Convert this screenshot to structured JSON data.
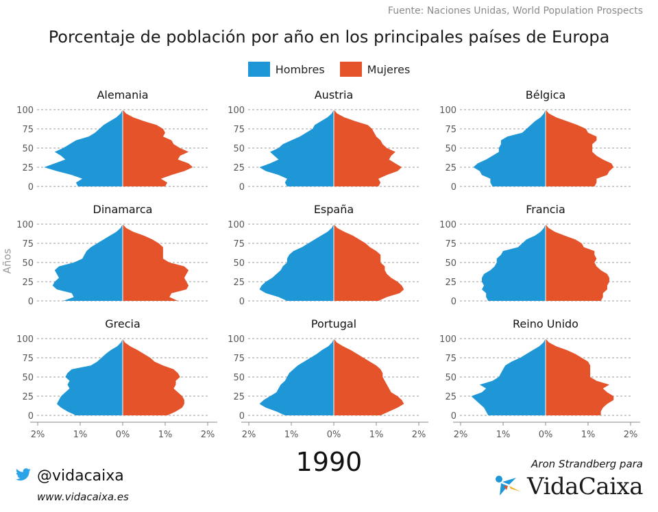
{
  "source": "Fuente: Naciones Unidas, World Population Prospects",
  "title": "Porcentaje de población por año en los principales países de Europa",
  "legend": {
    "men": "Hombres",
    "women": "Mujeres"
  },
  "colors": {
    "men": "#1f96d6",
    "women": "#e4532a",
    "grid": "#9a9a9a"
  },
  "ylabel": "Años",
  "year": "1990",
  "footer": {
    "twitter_handle": "@vidacaixa",
    "website": "www.vidacaixa.es",
    "credit": "Aron Strandberg para",
    "brand": "VidaCaixa",
    "twitter_icon": "twitter-bird-icon",
    "brand_icon": "star-logo-icon"
  },
  "chart_data": [
    {
      "type": "population-pyramid",
      "title": "Alemania",
      "ages": [
        0,
        5,
        10,
        15,
        20,
        25,
        30,
        35,
        40,
        45,
        50,
        55,
        60,
        65,
        70,
        75,
        80,
        85,
        90,
        95,
        100
      ],
      "men": [
        1.05,
        1.1,
        0.95,
        1.2,
        1.55,
        1.85,
        1.6,
        1.35,
        1.45,
        1.6,
        1.4,
        1.25,
        1.1,
        0.8,
        0.65,
        0.55,
        0.45,
        0.3,
        0.15,
        0.05,
        0.0
      ],
      "women": [
        1.0,
        1.05,
        0.9,
        1.15,
        1.45,
        1.65,
        1.55,
        1.3,
        1.35,
        1.55,
        1.35,
        1.2,
        1.15,
        0.95,
        1.0,
        0.95,
        0.8,
        0.5,
        0.25,
        0.08,
        0.0
      ]
    },
    {
      "type": "population-pyramid",
      "title": "Austria",
      "ages": [
        0,
        5,
        10,
        15,
        20,
        25,
        30,
        35,
        40,
        45,
        50,
        55,
        60,
        65,
        70,
        75,
        80,
        85,
        90,
        95,
        100
      ],
      "men": [
        1.1,
        1.15,
        1.1,
        1.3,
        1.6,
        1.75,
        1.5,
        1.3,
        1.4,
        1.5,
        1.3,
        1.2,
        1.0,
        0.8,
        0.65,
        0.5,
        0.45,
        0.3,
        0.15,
        0.05,
        0.0
      ],
      "women": [
        1.05,
        1.1,
        1.05,
        1.25,
        1.5,
        1.6,
        1.45,
        1.3,
        1.35,
        1.45,
        1.25,
        1.15,
        1.1,
        1.0,
        0.95,
        0.9,
        0.8,
        0.5,
        0.25,
        0.08,
        0.0
      ]
    },
    {
      "type": "population-pyramid",
      "title": "Bélgica",
      "ages": [
        0,
        5,
        10,
        15,
        20,
        25,
        30,
        35,
        40,
        45,
        50,
        55,
        60,
        65,
        70,
        75,
        80,
        85,
        90,
        95,
        100
      ],
      "men": [
        1.25,
        1.3,
        1.3,
        1.5,
        1.55,
        1.7,
        1.6,
        1.4,
        1.25,
        1.1,
        1.1,
        1.05,
        1.05,
        0.9,
        0.55,
        0.45,
        0.35,
        0.25,
        0.12,
        0.04,
        0.0
      ],
      "women": [
        1.15,
        1.2,
        1.2,
        1.45,
        1.5,
        1.6,
        1.55,
        1.35,
        1.2,
        1.1,
        1.1,
        1.1,
        1.2,
        1.2,
        1.0,
        0.95,
        0.75,
        0.5,
        0.25,
        0.08,
        0.0
      ]
    },
    {
      "type": "population-pyramid",
      "title": "Dinamarca",
      "ages": [
        0,
        5,
        10,
        15,
        20,
        25,
        30,
        35,
        40,
        45,
        50,
        55,
        60,
        65,
        70,
        75,
        80,
        85,
        90,
        95,
        100
      ],
      "men": [
        1.4,
        1.15,
        1.2,
        1.55,
        1.65,
        1.6,
        1.5,
        1.55,
        1.6,
        1.5,
        1.15,
        0.95,
        0.9,
        0.85,
        0.75,
        0.6,
        0.45,
        0.3,
        0.15,
        0.05,
        0.0
      ],
      "women": [
        1.3,
        1.1,
        1.15,
        1.5,
        1.55,
        1.5,
        1.45,
        1.5,
        1.55,
        1.45,
        1.1,
        0.95,
        0.95,
        0.95,
        0.95,
        0.85,
        0.7,
        0.5,
        0.25,
        0.08,
        0.0
      ]
    },
    {
      "type": "population-pyramid",
      "title": "España",
      "ages": [
        0,
        5,
        10,
        15,
        20,
        25,
        30,
        35,
        40,
        45,
        50,
        55,
        60,
        65,
        70,
        75,
        80,
        85,
        90,
        95,
        100
      ],
      "men": [
        1.1,
        1.3,
        1.6,
        1.75,
        1.7,
        1.6,
        1.45,
        1.35,
        1.25,
        1.2,
        1.1,
        1.1,
        1.05,
        0.95,
        0.75,
        0.6,
        0.45,
        0.3,
        0.15,
        0.05,
        0.0
      ],
      "women": [
        1.05,
        1.25,
        1.55,
        1.65,
        1.6,
        1.5,
        1.35,
        1.25,
        1.2,
        1.2,
        1.1,
        1.1,
        1.1,
        1.0,
        0.85,
        0.75,
        0.6,
        0.45,
        0.25,
        0.08,
        0.0
      ]
    },
    {
      "type": "population-pyramid",
      "title": "Francia",
      "ages": [
        0,
        5,
        10,
        15,
        20,
        25,
        30,
        35,
        40,
        45,
        50,
        55,
        60,
        65,
        70,
        75,
        80,
        85,
        90,
        95,
        100
      ],
      "men": [
        1.35,
        1.4,
        1.4,
        1.5,
        1.45,
        1.5,
        1.5,
        1.45,
        1.3,
        1.2,
        1.15,
        1.15,
        1.05,
        1.0,
        0.65,
        0.55,
        0.45,
        0.25,
        0.12,
        0.04,
        0.0
      ],
      "women": [
        1.3,
        1.35,
        1.35,
        1.45,
        1.45,
        1.5,
        1.5,
        1.45,
        1.3,
        1.2,
        1.15,
        1.2,
        1.15,
        1.15,
        0.9,
        0.85,
        0.7,
        0.45,
        0.22,
        0.07,
        0.0
      ]
    },
    {
      "type": "population-pyramid",
      "title": "Grecia",
      "ages": [
        0,
        5,
        10,
        15,
        20,
        25,
        30,
        35,
        40,
        45,
        50,
        55,
        60,
        65,
        70,
        75,
        80,
        85,
        90,
        95,
        100
      ],
      "men": [
        1.1,
        1.3,
        1.45,
        1.55,
        1.5,
        1.45,
        1.35,
        1.25,
        1.3,
        1.25,
        1.35,
        1.3,
        1.2,
        0.75,
        0.6,
        0.5,
        0.4,
        0.28,
        0.13,
        0.04,
        0.0
      ],
      "women": [
        1.05,
        1.25,
        1.4,
        1.45,
        1.45,
        1.4,
        1.3,
        1.2,
        1.25,
        1.25,
        1.35,
        1.3,
        1.2,
        0.95,
        0.75,
        0.65,
        0.5,
        0.35,
        0.18,
        0.05,
        0.0
      ]
    },
    {
      "type": "population-pyramid",
      "title": "Portugal",
      "ages": [
        0,
        5,
        10,
        15,
        20,
        25,
        30,
        35,
        40,
        45,
        50,
        55,
        60,
        65,
        70,
        75,
        80,
        85,
        90,
        95,
        100
      ],
      "men": [
        1.15,
        1.35,
        1.6,
        1.75,
        1.65,
        1.5,
        1.35,
        1.3,
        1.25,
        1.15,
        1.1,
        1.05,
        0.95,
        0.85,
        0.7,
        0.55,
        0.4,
        0.28,
        0.13,
        0.04,
        0.0
      ],
      "women": [
        1.1,
        1.3,
        1.5,
        1.65,
        1.6,
        1.5,
        1.35,
        1.3,
        1.25,
        1.2,
        1.15,
        1.15,
        1.1,
        1.0,
        0.85,
        0.7,
        0.55,
        0.4,
        0.22,
        0.07,
        0.0
      ]
    },
    {
      "type": "population-pyramid",
      "title": "Reino Unido",
      "ages": [
        0,
        5,
        10,
        15,
        20,
        25,
        30,
        35,
        40,
        45,
        50,
        55,
        60,
        65,
        70,
        75,
        80,
        85,
        90,
        95,
        100
      ],
      "men": [
        1.35,
        1.4,
        1.45,
        1.55,
        1.65,
        1.75,
        1.5,
        1.4,
        1.55,
        1.25,
        1.1,
        1.05,
        1.0,
        0.95,
        0.8,
        0.6,
        0.45,
        0.3,
        0.15,
        0.05,
        0.0
      ],
      "women": [
        1.3,
        1.3,
        1.35,
        1.45,
        1.6,
        1.6,
        1.45,
        1.35,
        1.5,
        1.2,
        1.05,
        1.05,
        1.05,
        1.05,
        1.0,
        0.85,
        0.7,
        0.5,
        0.25,
        0.08,
        0.0
      ]
    }
  ],
  "axes": {
    "y_ticks": [
      0,
      25,
      50,
      75,
      100
    ],
    "y_tick_labels": [
      "0",
      "25",
      "50",
      "75",
      "100"
    ],
    "x_ticks": [
      -2,
      -1,
      0,
      1,
      2
    ],
    "x_tick_labels": [
      "2%",
      "1%",
      "0%",
      "1%",
      "2%"
    ],
    "xlim": [
      -2,
      2
    ],
    "ylim": [
      0,
      100
    ]
  }
}
